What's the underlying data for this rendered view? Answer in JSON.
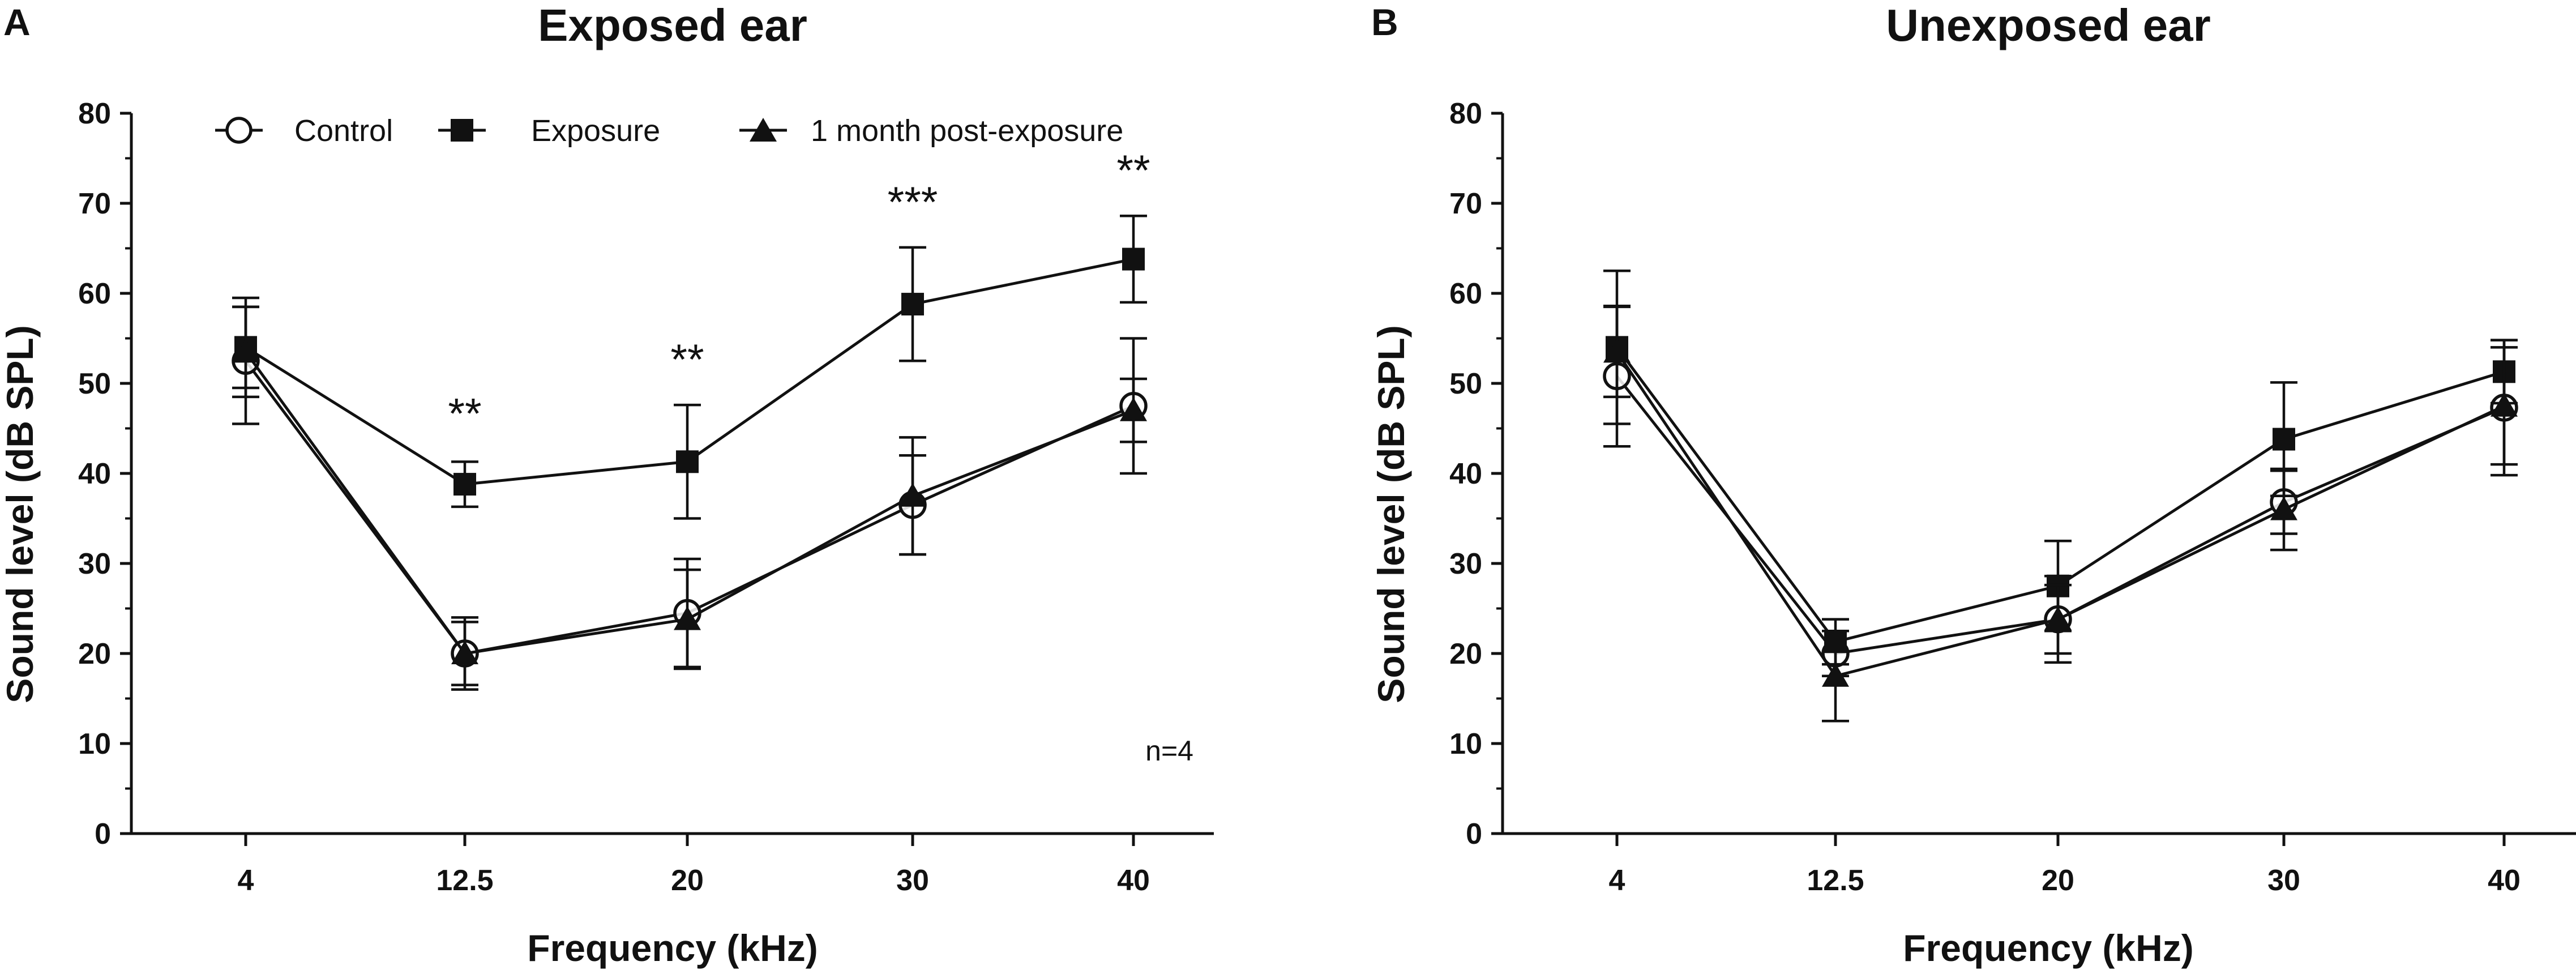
{
  "chart_data": [
    {
      "type": "line",
      "panel_letter": "A",
      "title": "Exposed ear",
      "xlabel": "Frequency (kHz)",
      "ylabel": "Sound level (dB SPL)",
      "categories": [
        "4",
        "12.5",
        "20",
        "30",
        "40"
      ],
      "y_ticks": [
        "0",
        "10",
        "20",
        "30",
        "40",
        "50",
        "60",
        "70",
        "80"
      ],
      "ylim": [
        0,
        80
      ],
      "grid": false,
      "legend_position": "top",
      "series": [
        {
          "name": "Control",
          "marker": "open-circle",
          "values": [
            52.5,
            20,
            24.5,
            36.5,
            47.5
          ],
          "errors": [
            7,
            4,
            6,
            5.5,
            7.5
          ]
        },
        {
          "name": "Exposure",
          "marker": "filled-square",
          "values": [
            54,
            38.8,
            41.3,
            58.8,
            63.8
          ],
          "errors": [
            4.5,
            2.5,
            6.3,
            6.3,
            4.8
          ]
        },
        {
          "name": "1 month post-exposure",
          "marker": "filled-triangle",
          "values": [
            53.5,
            20,
            23.8,
            37.5,
            47
          ],
          "errors": [
            5,
            3.5,
            5.5,
            6.5,
            3.5
          ]
        }
      ],
      "annotations": [
        {
          "category": "12.5",
          "text": "**",
          "y": 45
        },
        {
          "category": "20",
          "text": "**",
          "y": 51
        },
        {
          "category": "30",
          "text": "***",
          "y": 68.5
        },
        {
          "category": "40",
          "text": "**",
          "y": 72
        },
        {
          "text": "n=4",
          "position": "bottom-right"
        }
      ]
    },
    {
      "type": "line",
      "panel_letter": "B",
      "title": "Unexposed ear",
      "xlabel": "Frequency (kHz)",
      "ylabel": "Sound level (dB SPL)",
      "categories": [
        "4",
        "12.5",
        "20",
        "30",
        "40"
      ],
      "y_ticks": [
        "0",
        "10",
        "20",
        "30",
        "40",
        "50",
        "60",
        "70",
        "80"
      ],
      "ylim": [
        0,
        80
      ],
      "grid": false,
      "series": [
        {
          "name": "Control",
          "marker": "open-circle",
          "values": [
            50.8,
            20,
            23.8,
            36.8,
            47.3
          ],
          "errors": [
            7.8,
            2.5,
            4.8,
            3.5,
            7.5
          ]
        },
        {
          "name": "Exposure",
          "marker": "filled-square",
          "values": [
            54,
            21.3,
            27.5,
            43.8,
            51.3
          ],
          "errors": [
            8.5,
            2.5,
            5,
            6.3,
            3.5
          ]
        },
        {
          "name": "1 month post-exposure",
          "marker": "filled-triangle",
          "values": [
            53.5,
            17.5,
            23.8,
            36,
            47.5
          ],
          "errors": [
            5,
            5,
            3.8,
            4.5,
            6.5
          ]
        }
      ],
      "annotations": []
    }
  ]
}
